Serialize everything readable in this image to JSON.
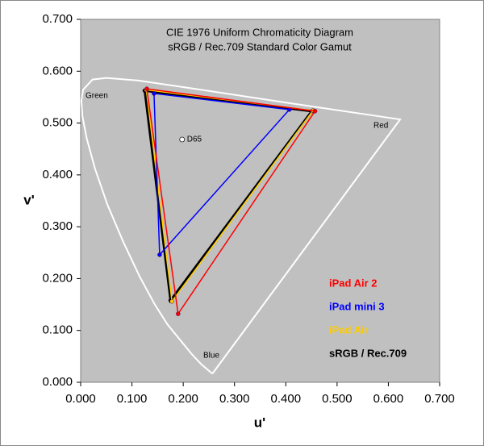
{
  "chart_data": {
    "type": "gamut",
    "title": "CIE 1976 Uniform Chromaticity Diagram",
    "subtitle": "sRGB / Rec.709 Standard Color Gamut",
    "x_label": "u'",
    "y_label": "v'",
    "xlim": [
      0,
      0.7
    ],
    "ylim": [
      0,
      0.7
    ],
    "xticks": [
      {
        "value": 0,
        "label": "0.000"
      },
      {
        "value": 0.1,
        "label": "0.100"
      },
      {
        "value": 0.2,
        "label": "0.200"
      },
      {
        "value": 0.3,
        "label": "0.300"
      },
      {
        "value": 0.4,
        "label": "0.400"
      },
      {
        "value": 0.5,
        "label": "0.500"
      },
      {
        "value": 0.6,
        "label": "0.600"
      },
      {
        "value": 0.7,
        "label": "0.700"
      }
    ],
    "yticks": [
      {
        "value": 0,
        "label": "0.000"
      },
      {
        "value": 0.1,
        "label": "0.100"
      },
      {
        "value": 0.2,
        "label": "0.200"
      },
      {
        "value": 0.3,
        "label": "0.300"
      },
      {
        "value": 0.4,
        "label": "0.400"
      },
      {
        "value": 0.5,
        "label": "0.500"
      },
      {
        "value": 0.6,
        "label": "0.600"
      },
      {
        "value": 0.7,
        "label": "0.700"
      }
    ],
    "locus": {
      "color": "#ffffff",
      "x": [
        0.2568,
        0.235,
        0.216,
        0.169,
        0.144,
        0.115,
        0.083,
        0.052,
        0.028,
        0.0119,
        0.0035,
        0.0014,
        0.0046,
        0.0231,
        0.05,
        0.1127,
        0.2026,
        0.4035,
        0.623,
        0.2568
      ],
      "values": [
        0.0165,
        0.035,
        0.055,
        0.112,
        0.151,
        0.204,
        0.271,
        0.343,
        0.412,
        0.47,
        0.513,
        0.543,
        0.564,
        0.584,
        0.587,
        0.582,
        0.569,
        0.539,
        0.507,
        0.0165
      ]
    },
    "annotations": [
      "Green",
      "Red",
      "Blue"
    ],
    "points": [
      {
        "label": "D65",
        "x": 0.1978,
        "y": 0.4683,
        "color": "#ffffff"
      }
    ],
    "series": [
      {
        "name": "iPad Air 2",
        "color": "#ff0000",
        "x": [
          0.457,
          0.129,
          0.19
        ],
        "values": [
          0.523,
          0.566,
          0.132
        ]
      },
      {
        "name": "iPad mini 3",
        "color": "#0000ff",
        "x": [
          0.407,
          0.143,
          0.154
        ],
        "values": [
          0.526,
          0.557,
          0.246
        ]
      },
      {
        "name": "iPad Air",
        "color": "#ffcc00",
        "x": [
          0.453,
          0.128,
          0.178
        ],
        "values": [
          0.524,
          0.564,
          0.156
        ]
      },
      {
        "name": "sRGB / Rec.709",
        "color": "#000000",
        "x": [
          0.4507,
          0.125,
          0.1754
        ],
        "values": [
          0.5229,
          0.5625,
          0.1579
        ]
      }
    ]
  }
}
